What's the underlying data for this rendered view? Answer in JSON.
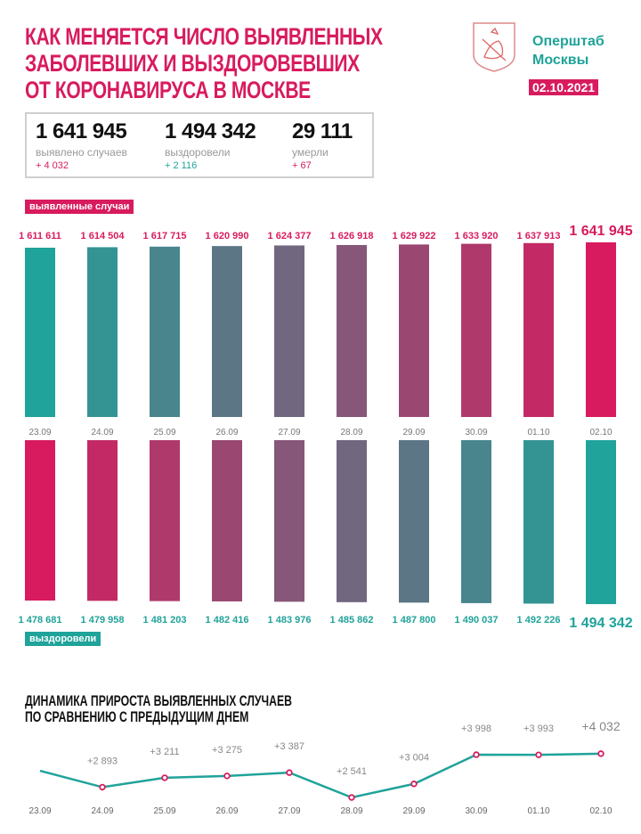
{
  "header": {
    "title_lines": [
      "КАК МЕНЯЕТСЯ ЧИСЛО ВЫЯВЛЕННЫХ",
      "ЗАБОЛЕВШИХ И ВЫЗДОРОВЕВШИХ",
      "ОТ КОРОНАВИРУСА В МОСКВЕ"
    ],
    "brand_lines": [
      "Оперштаб",
      "Москвы"
    ],
    "date": "02.10.2021",
    "logo_icon": "moscow-coat-of-arms-icon"
  },
  "stats": [
    {
      "value": "1 641 945",
      "label": "выявлено случаев",
      "delta": "+ 4 032",
      "color": "#d81b5e"
    },
    {
      "value": "1 494 342",
      "label": "выздоровели",
      "delta": "+ 2 116",
      "color": "#1fa39a"
    },
    {
      "value": "29 111",
      "label": "умерли",
      "delta": "+ 67",
      "color": "#d81b5e"
    }
  ],
  "colors": {
    "pink": "#d81b5e",
    "teal": "#1fa39a",
    "gray": "#888888"
  },
  "chart_data": [
    {
      "type": "bar",
      "legend": "выявленные случаи",
      "categories": [
        "23.09",
        "24.09",
        "25.09",
        "26.09",
        "27.09",
        "28.09",
        "29.09",
        "30.09",
        "01.10",
        "02.10"
      ],
      "values": [
        1611611,
        1614504,
        1617715,
        1620990,
        1624377,
        1626918,
        1629922,
        1633920,
        1637913,
        1641945
      ],
      "labels": [
        "1 611 611",
        "1 614 504",
        "1 617 715",
        "1 620 990",
        "1 624 377",
        "1 626 918",
        "1 629 922",
        "1 633 920",
        "1 637 913",
        "1 641 945"
      ]
    },
    {
      "type": "bar",
      "legend": "выздоровели",
      "categories": [
        "23.09",
        "24.09",
        "25.09",
        "26.09",
        "27.09",
        "28.09",
        "29.09",
        "30.09",
        "01.10",
        "02.10"
      ],
      "values": [
        1478681,
        1479958,
        1481203,
        1482416,
        1483976,
        1485862,
        1487800,
        1490037,
        1492226,
        1494342
      ],
      "labels": [
        "1 478 681",
        "1 479 958",
        "1 481 203",
        "1 482 416",
        "1 483 976",
        "1 485 862",
        "1 487 800",
        "1 490 037",
        "1 492 226",
        "1 494 342"
      ]
    },
    {
      "type": "line",
      "title_lines": [
        "ДИНАМИКА ПРИРОСТА ВЫЯВЛЕННЫХ СЛУЧАЕВ",
        "ПО СРАВНЕНИЮ С ПРЕДЫДУЩИМ ДНЕМ"
      ],
      "categories": [
        "23.09",
        "24.09",
        "25.09",
        "26.09",
        "27.09",
        "28.09",
        "29.09",
        "30.09",
        "01.10",
        "02.10"
      ],
      "values": [
        3450,
        2893,
        3211,
        3275,
        3387,
        2541,
        3004,
        3998,
        3993,
        4032
      ],
      "labels": [
        "",
        "+2 893",
        "+3 211",
        "+3 275",
        "+3 387",
        "+2 541",
        "+3 004",
        "+3 998",
        "+3 993",
        "+4 032"
      ]
    }
  ]
}
